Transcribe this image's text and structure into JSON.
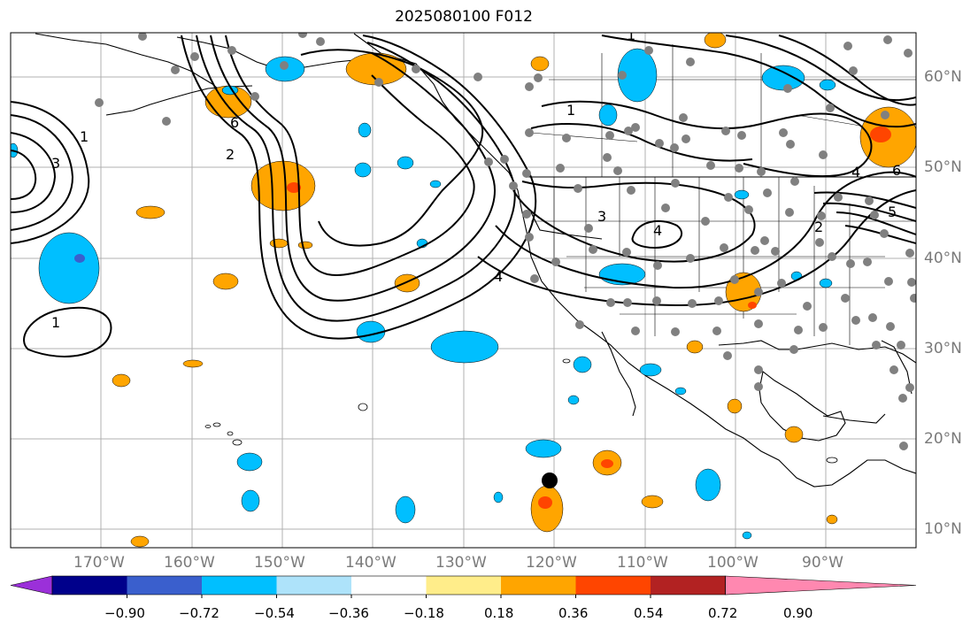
{
  "title": "2025080100 F012",
  "map": {
    "lon_labels": [
      "170°W",
      "160°W",
      "150°W",
      "140°W",
      "130°W",
      "120°W",
      "110°W",
      "100°W",
      "90°W"
    ],
    "lat_labels": [
      "60°N",
      "50°N",
      "40°N",
      "30°N",
      "20°N",
      "10°N"
    ],
    "contour_labels": [
      "1",
      "1",
      "1",
      "1",
      "2",
      "2",
      "3",
      "3",
      "4",
      "4",
      "4",
      "6",
      "6",
      "5"
    ]
  },
  "colorbar": {
    "ticks": [
      "−0.90",
      "−0.72",
      "−0.54",
      "−0.36",
      "−0.18",
      "0.18",
      "0.36",
      "0.54",
      "0.72",
      "0.90"
    ],
    "colors": [
      "#9b30d9",
      "#00008b",
      "#3a5fcd",
      "#00bfff",
      "#aee3fa",
      "#ffffff",
      "#ffed8a",
      "#ffa500",
      "#ff4500",
      "#b22222",
      "#ff88b0"
    ]
  }
}
